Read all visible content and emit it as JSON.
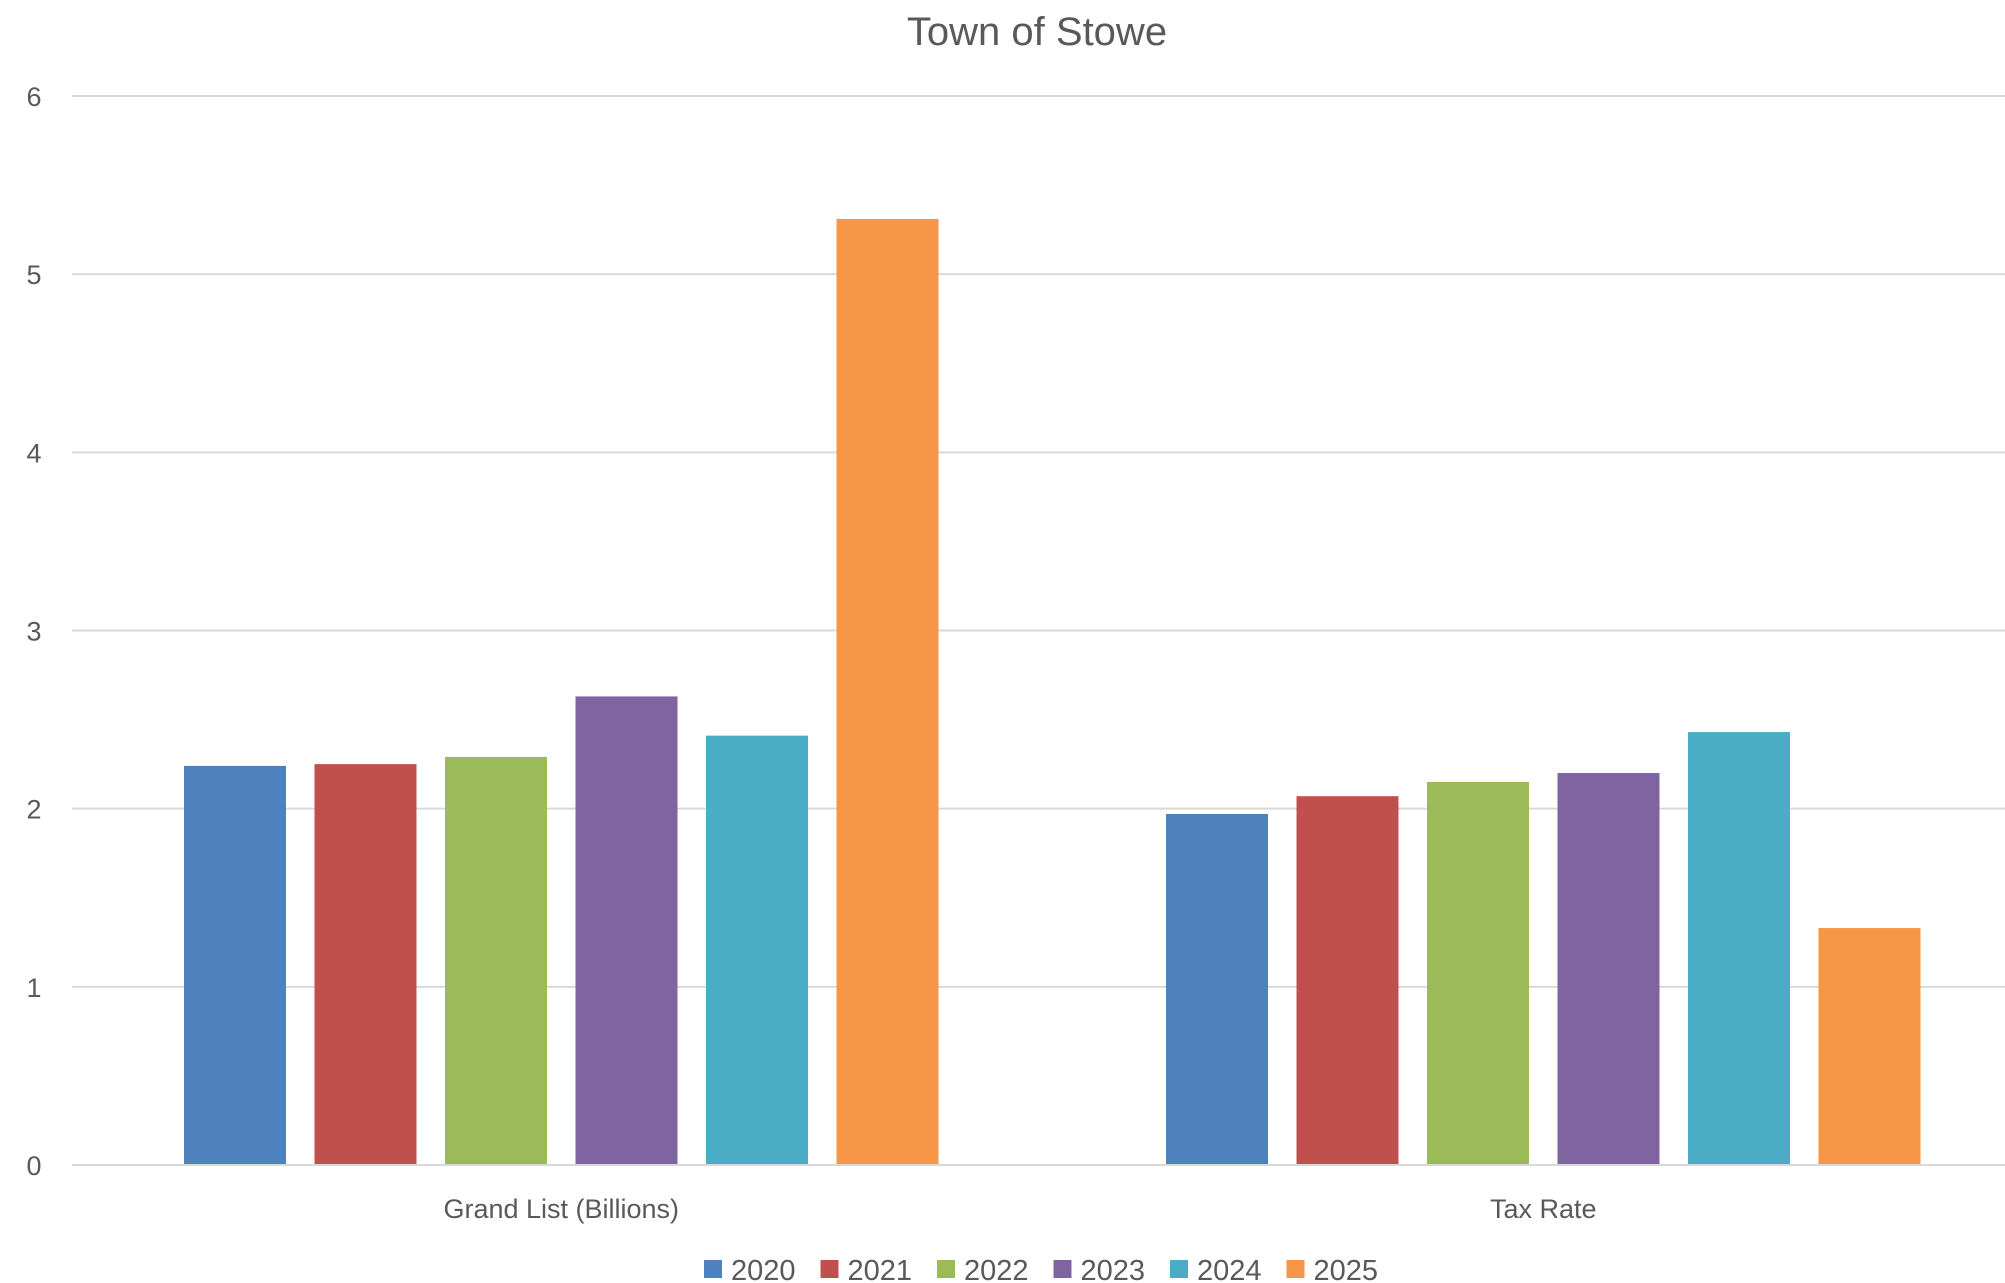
{
  "chart_data": {
    "type": "bar",
    "title": "Town of Stowe",
    "xlabel": "",
    "ylabel": "",
    "categories": [
      "Grand List (Billions)",
      "Tax Rate"
    ],
    "series": [
      {
        "name": "2020",
        "color": "#4F81BD",
        "values": [
          2.24,
          1.97
        ]
      },
      {
        "name": "2021",
        "color": "#C0504D",
        "values": [
          2.25,
          2.07
        ]
      },
      {
        "name": "2022",
        "color": "#9BBB59",
        "values": [
          2.29,
          2.15
        ]
      },
      {
        "name": "2023",
        "color": "#8064A2",
        "values": [
          2.63,
          2.2
        ]
      },
      {
        "name": "2024",
        "color": "#4BACC6",
        "values": [
          2.41,
          2.43
        ]
      },
      {
        "name": "2025",
        "color": "#F79646",
        "values": [
          5.31,
          1.33
        ]
      }
    ],
    "ylim": [
      0,
      6
    ],
    "yticks": [
      "0",
      "1",
      "2",
      "3",
      "4",
      "5",
      "6"
    ],
    "grid": true,
    "legend": "bottom"
  }
}
